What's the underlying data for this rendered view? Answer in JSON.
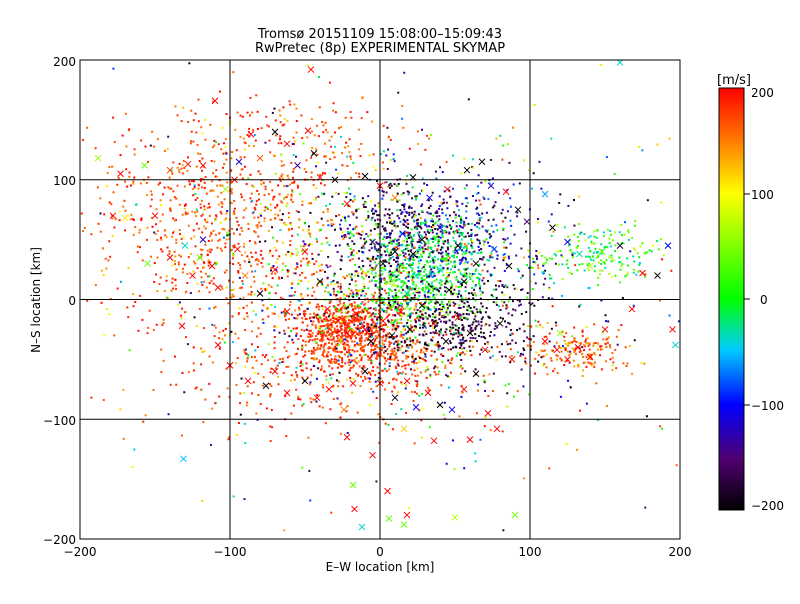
{
  "chart_data": {
    "type": "scatter",
    "title": "Tromsø 20151109 15:08:00–15:09:43",
    "subtitle": "RwPretec (8p) EXPERIMENTAL SKYMAP",
    "xlabel": "E–W location [km]",
    "ylabel": "N–S location [km]",
    "xlim": [
      -200,
      200
    ],
    "ylim": [
      -200,
      200
    ],
    "xticks": [
      -200,
      -100,
      0,
      100,
      200
    ],
    "yticks": [
      -200,
      -100,
      0,
      100,
      200
    ],
    "xtick_labels": [
      "−200",
      "−100",
      "0",
      "100",
      "200"
    ],
    "ytick_labels": [
      "−200",
      "−100",
      "0",
      "100",
      "200"
    ],
    "grid": true,
    "markers": [
      "x",
      "dot"
    ],
    "colorbar": {
      "label": "[m/s]",
      "range": [
        -200,
        200
      ],
      "ticks": [
        200,
        100,
        0,
        -100,
        -200
      ],
      "tick_labels": [
        "200",
        "100",
        "0",
        "−100",
        "−200"
      ],
      "colors": [
        "#000000",
        "#500070",
        "#0000ff",
        "#00ccff",
        "#00ff00",
        "#ffff00",
        "#ff8000",
        "#ff0000"
      ]
    },
    "points": [
      {
        "x": -140,
        "y": 108,
        "v": 180,
        "m": "x"
      },
      {
        "x": -128,
        "y": 113,
        "v": 195,
        "m": "x"
      },
      {
        "x": -118,
        "y": 112,
        "v": 190,
        "m": "x"
      },
      {
        "x": -103,
        "y": 92,
        "v": 60,
        "m": "x"
      },
      {
        "x": -97,
        "y": 100,
        "v": 200,
        "m": "x"
      },
      {
        "x": -94,
        "y": 115,
        "v": -120,
        "m": "x"
      },
      {
        "x": -86,
        "y": 138,
        "v": 200,
        "m": "x"
      },
      {
        "x": -80,
        "y": 118,
        "v": 170,
        "m": "x"
      },
      {
        "x": -70,
        "y": 140,
        "v": -200,
        "m": "x"
      },
      {
        "x": -62,
        "y": 130,
        "v": 200,
        "m": "x"
      },
      {
        "x": -55,
        "y": 112,
        "v": -140,
        "m": "x"
      },
      {
        "x": -48,
        "y": 141,
        "v": 200,
        "m": "x"
      },
      {
        "x": -44,
        "y": 122,
        "v": -200,
        "m": "x"
      },
      {
        "x": -40,
        "y": 102,
        "v": 200,
        "m": "x"
      },
      {
        "x": -46,
        "y": 192,
        "v": 200,
        "m": "x"
      },
      {
        "x": -110,
        "y": 166,
        "v": 200,
        "m": "x"
      },
      {
        "x": -30,
        "y": 100,
        "v": -190,
        "m": "x"
      },
      {
        "x": -22,
        "y": 80,
        "v": 200,
        "m": "x"
      },
      {
        "x": -10,
        "y": 103,
        "v": -200,
        "m": "x"
      },
      {
        "x": 0,
        "y": 95,
        "v": 200,
        "m": "x"
      },
      {
        "x": 10,
        "y": 85,
        "v": 150,
        "m": "x"
      },
      {
        "x": 22,
        "y": 102,
        "v": -200,
        "m": "x"
      },
      {
        "x": 33,
        "y": 85,
        "v": -110,
        "m": "x"
      },
      {
        "x": 45,
        "y": 92,
        "v": 200,
        "m": "x"
      },
      {
        "x": 58,
        "y": 108,
        "v": -200,
        "m": "x"
      },
      {
        "x": 68,
        "y": 115,
        "v": -200,
        "m": "x"
      },
      {
        "x": 74,
        "y": 95,
        "v": -120,
        "m": "x"
      },
      {
        "x": 84,
        "y": 90,
        "v": 200,
        "m": "x"
      },
      {
        "x": 92,
        "y": 75,
        "v": -200,
        "m": "x"
      },
      {
        "x": 98,
        "y": 65,
        "v": -150,
        "m": "x"
      },
      {
        "x": 110,
        "y": 88,
        "v": -60,
        "m": "x"
      },
      {
        "x": 115,
        "y": 60,
        "v": -200,
        "m": "x"
      },
      {
        "x": 125,
        "y": 48,
        "v": -100,
        "m": "x"
      },
      {
        "x": 133,
        "y": 38,
        "v": -30,
        "m": "x"
      },
      {
        "x": 140,
        "y": 28,
        "v": 70,
        "m": "x"
      },
      {
        "x": 148,
        "y": 40,
        "v": 30,
        "m": "x"
      },
      {
        "x": 160,
        "y": 45,
        "v": -180,
        "m": "x"
      },
      {
        "x": 175,
        "y": 22,
        "v": 200,
        "m": "x"
      },
      {
        "x": 192,
        "y": 45,
        "v": -100,
        "m": "x"
      },
      {
        "x": 185,
        "y": 20,
        "v": -200,
        "m": "x"
      },
      {
        "x": 160,
        "y": 198,
        "v": -40,
        "m": "x"
      },
      {
        "x": -188,
        "y": 118,
        "v": 60,
        "m": "x"
      },
      {
        "x": -178,
        "y": 70,
        "v": 200,
        "m": "x"
      },
      {
        "x": -173,
        "y": 105,
        "v": 200,
        "m": "x"
      },
      {
        "x": -170,
        "y": 68,
        "v": 110,
        "m": "x"
      },
      {
        "x": -157,
        "y": 112,
        "v": 40,
        "m": "x"
      },
      {
        "x": -155,
        "y": 30,
        "v": 40,
        "m": "x"
      },
      {
        "x": -150,
        "y": 70,
        "v": 200,
        "m": "x"
      },
      {
        "x": -140,
        "y": 35,
        "v": 200,
        "m": "x"
      },
      {
        "x": -130,
        "y": 45,
        "v": -40,
        "m": "x"
      },
      {
        "x": -125,
        "y": 20,
        "v": 200,
        "m": "x"
      },
      {
        "x": -118,
        "y": 50,
        "v": -120,
        "m": "x"
      },
      {
        "x": -112,
        "y": 28,
        "v": 200,
        "m": "x"
      },
      {
        "x": -108,
        "y": 10,
        "v": 200,
        "m": "x"
      },
      {
        "x": -95,
        "y": 42,
        "v": 200,
        "m": "x"
      },
      {
        "x": -90,
        "y": 20,
        "v": 150,
        "m": "x"
      },
      {
        "x": -80,
        "y": 5,
        "v": -200,
        "m": "x"
      },
      {
        "x": -70,
        "y": 25,
        "v": 200,
        "m": "x"
      },
      {
        "x": -62,
        "y": -10,
        "v": 200,
        "m": "x"
      },
      {
        "x": -50,
        "y": 40,
        "v": 200,
        "m": "x"
      },
      {
        "x": -40,
        "y": 15,
        "v": -200,
        "m": "x"
      },
      {
        "x": -35,
        "y": -8,
        "v": 200,
        "m": "x"
      },
      {
        "x": -28,
        "y": -18,
        "v": 200,
        "m": "x"
      },
      {
        "x": -22,
        "y": -28,
        "v": 200,
        "m": "x"
      },
      {
        "x": -16,
        "y": -12,
        "v": 200,
        "m": "x"
      },
      {
        "x": -10,
        "y": -25,
        "v": 200,
        "m": "x"
      },
      {
        "x": -6,
        "y": -35,
        "v": -200,
        "m": "x"
      },
      {
        "x": 2,
        "y": -18,
        "v": 200,
        "m": "x"
      },
      {
        "x": 8,
        "y": -30,
        "v": -200,
        "m": "x"
      },
      {
        "x": 14,
        "y": -10,
        "v": 200,
        "m": "x"
      },
      {
        "x": 20,
        "y": -25,
        "v": -200,
        "m": "x"
      },
      {
        "x": 28,
        "y": -5,
        "v": -200,
        "m": "x"
      },
      {
        "x": 36,
        "y": -20,
        "v": 200,
        "m": "x"
      },
      {
        "x": 44,
        "y": -35,
        "v": -200,
        "m": "x"
      },
      {
        "x": 52,
        "y": -15,
        "v": 200,
        "m": "x"
      },
      {
        "x": 60,
        "y": -28,
        "v": -200,
        "m": "x"
      },
      {
        "x": 70,
        "y": -42,
        "v": 200,
        "m": "x"
      },
      {
        "x": 80,
        "y": -20,
        "v": -200,
        "m": "x"
      },
      {
        "x": 88,
        "y": -50,
        "v": 200,
        "m": "x"
      },
      {
        "x": -132,
        "y": -22,
        "v": 200,
        "m": "x"
      },
      {
        "x": -108,
        "y": -38,
        "v": 200,
        "m": "x"
      },
      {
        "x": -100,
        "y": -55,
        "v": 200,
        "m": "x"
      },
      {
        "x": -88,
        "y": -68,
        "v": 200,
        "m": "x"
      },
      {
        "x": -76,
        "y": -72,
        "v": -200,
        "m": "x"
      },
      {
        "x": -70,
        "y": -60,
        "v": 200,
        "m": "x"
      },
      {
        "x": -62,
        "y": -78,
        "v": 200,
        "m": "x"
      },
      {
        "x": -50,
        "y": -68,
        "v": -200,
        "m": "x"
      },
      {
        "x": -42,
        "y": -82,
        "v": 200,
        "m": "x"
      },
      {
        "x": -34,
        "y": -75,
        "v": 200,
        "m": "x"
      },
      {
        "x": -24,
        "y": -92,
        "v": 150,
        "m": "x"
      },
      {
        "x": -18,
        "y": -70,
        "v": 200,
        "m": "x"
      },
      {
        "x": -10,
        "y": -60,
        "v": -200,
        "m": "x"
      },
      {
        "x": 0,
        "y": -70,
        "v": 200,
        "m": "x"
      },
      {
        "x": 10,
        "y": -82,
        "v": -200,
        "m": "x"
      },
      {
        "x": 18,
        "y": -68,
        "v": 200,
        "m": "x"
      },
      {
        "x": 24,
        "y": -90,
        "v": -100,
        "m": "x"
      },
      {
        "x": 32,
        "y": -78,
        "v": 200,
        "m": "x"
      },
      {
        "x": 40,
        "y": -88,
        "v": -200,
        "m": "x"
      },
      {
        "x": 48,
        "y": -92,
        "v": -100,
        "m": "x"
      },
      {
        "x": 56,
        "y": -75,
        "v": 200,
        "m": "x"
      },
      {
        "x": 64,
        "y": -62,
        "v": -200,
        "m": "x"
      },
      {
        "x": 72,
        "y": -95,
        "v": 200,
        "m": "x"
      },
      {
        "x": 78,
        "y": -108,
        "v": 200,
        "m": "x"
      },
      {
        "x": 60,
        "y": -117,
        "v": 200,
        "m": "x"
      },
      {
        "x": 36,
        "y": -118,
        "v": 200,
        "m": "x"
      },
      {
        "x": 16,
        "y": -108,
        "v": 120,
        "m": "x"
      },
      {
        "x": -22,
        "y": -115,
        "v": 200,
        "m": "x"
      },
      {
        "x": -5,
        "y": -130,
        "v": 200,
        "m": "x"
      },
      {
        "x": -18,
        "y": -155,
        "v": 40,
        "m": "x"
      },
      {
        "x": -17,
        "y": -175,
        "v": 200,
        "m": "x"
      },
      {
        "x": -12,
        "y": -190,
        "v": -40,
        "m": "x"
      },
      {
        "x": 5,
        "y": -160,
        "v": 200,
        "m": "x"
      },
      {
        "x": 6,
        "y": -183,
        "v": 40,
        "m": "x"
      },
      {
        "x": 16,
        "y": -188,
        "v": 40,
        "m": "x"
      },
      {
        "x": 18,
        "y": -180,
        "v": 200,
        "m": "x"
      },
      {
        "x": 50,
        "y": -182,
        "v": 70,
        "m": "x"
      },
      {
        "x": 90,
        "y": -180,
        "v": 40,
        "m": "x"
      },
      {
        "x": -131,
        "y": -133,
        "v": -50,
        "m": "x"
      },
      {
        "x": 110,
        "y": -35,
        "v": 200,
        "m": "x"
      },
      {
        "x": 118,
        "y": -42,
        "v": 200,
        "m": "x"
      },
      {
        "x": 125,
        "y": -50,
        "v": 200,
        "m": "x"
      },
      {
        "x": 132,
        "y": -40,
        "v": 200,
        "m": "x"
      },
      {
        "x": 140,
        "y": -48,
        "v": 200,
        "m": "x"
      },
      {
        "x": 120,
        "y": -28,
        "v": 60,
        "m": "x"
      },
      {
        "x": 150,
        "y": -25,
        "v": 200,
        "m": "x"
      },
      {
        "x": 168,
        "y": -8,
        "v": 200,
        "m": "x"
      },
      {
        "x": 195,
        "y": -25,
        "v": 200,
        "m": "x"
      },
      {
        "x": 197,
        "y": -38,
        "v": -40,
        "m": "x"
      },
      {
        "x": -120,
        "y": 35,
        "v": 40,
        "m": "x"
      },
      {
        "x": 10,
        "y": 40,
        "v": -200,
        "m": "x"
      },
      {
        "x": 15,
        "y": 55,
        "v": -100,
        "m": "x"
      },
      {
        "x": 22,
        "y": 38,
        "v": -200,
        "m": "x"
      },
      {
        "x": 28,
        "y": 50,
        "v": -200,
        "m": "x"
      },
      {
        "x": -5,
        "y": 48,
        "v": -140,
        "m": "x"
      },
      {
        "x": 2,
        "y": 30,
        "v": -200,
        "m": "x"
      },
      {
        "x": 40,
        "y": 60,
        "v": -120,
        "m": "x"
      },
      {
        "x": 52,
        "y": 45,
        "v": -200,
        "m": "x"
      },
      {
        "x": 64,
        "y": 30,
        "v": -200,
        "m": "x"
      },
      {
        "x": 76,
        "y": 42,
        "v": -80,
        "m": "x"
      },
      {
        "x": 86,
        "y": 28,
        "v": -200,
        "m": "x"
      },
      {
        "x": 24,
        "y": 20,
        "v": -40,
        "m": "x"
      },
      {
        "x": 32,
        "y": 10,
        "v": 20,
        "m": "x"
      },
      {
        "x": 18,
        "y": 5,
        "v": -30,
        "m": "x"
      },
      {
        "x": 8,
        "y": 15,
        "v": 60,
        "m": "x"
      },
      {
        "x": 40,
        "y": 25,
        "v": -40,
        "m": "x"
      },
      {
        "x": 46,
        "y": 8,
        "v": -200,
        "m": "x"
      },
      {
        "x": 56,
        "y": 15,
        "v": -200,
        "m": "x"
      }
    ],
    "clusters": [
      {
        "cx": -100,
        "cy": 55,
        "sx": 40,
        "sy": 40,
        "n": 500,
        "vmin": 140,
        "vmax": 200,
        "m": "dot"
      },
      {
        "cx": -70,
        "cy": 30,
        "sx": 55,
        "sy": 60,
        "n": 260,
        "vmin": 100,
        "vmax": 200,
        "m": "dot"
      },
      {
        "cx": -20,
        "cy": -25,
        "sx": 18,
        "sy": 15,
        "n": 650,
        "vmin": 160,
        "vmax": 200,
        "m": "dot"
      },
      {
        "cx": 5,
        "cy": -45,
        "sx": 22,
        "sy": 12,
        "n": 200,
        "vmin": 140,
        "vmax": 200,
        "m": "dot"
      },
      {
        "cx": 15,
        "cy": 55,
        "sx": 25,
        "sy": 20,
        "n": 380,
        "vmin": -200,
        "vmax": -120,
        "m": "dot"
      },
      {
        "cx": 35,
        "cy": 35,
        "sx": 20,
        "sy": 18,
        "n": 320,
        "vmin": -40,
        "vmax": 20,
        "m": "dot"
      },
      {
        "cx": 20,
        "cy": 5,
        "sx": 22,
        "sy": 14,
        "n": 280,
        "vmin": -30,
        "vmax": 50,
        "m": "dot"
      },
      {
        "cx": 45,
        "cy": -15,
        "sx": 30,
        "sy": 20,
        "n": 450,
        "vmin": -200,
        "vmax": -150,
        "m": "dot"
      },
      {
        "cx": 55,
        "cy": 55,
        "sx": 30,
        "sy": 25,
        "n": 220,
        "vmin": -200,
        "vmax": -60,
        "m": "dot"
      },
      {
        "cx": -10,
        "cy": 60,
        "sx": 50,
        "sy": 45,
        "n": 320,
        "vmin": -200,
        "vmax": 200,
        "m": "dot"
      },
      {
        "cx": 0,
        "cy": -10,
        "sx": 55,
        "sy": 40,
        "n": 380,
        "vmin": -200,
        "vmax": 200,
        "m": "dot"
      },
      {
        "cx": -40,
        "cy": -60,
        "sx": 55,
        "sy": 25,
        "n": 240,
        "vmin": 150,
        "vmax": 200,
        "m": "dot"
      },
      {
        "cx": 145,
        "cy": 38,
        "sx": 20,
        "sy": 12,
        "n": 170,
        "vmin": -50,
        "vmax": 80,
        "m": "dot"
      },
      {
        "cx": 130,
        "cy": -42,
        "sx": 16,
        "sy": 10,
        "n": 170,
        "vmin": 120,
        "vmax": 200,
        "m": "dot"
      },
      {
        "cx": -50,
        "cy": 135,
        "sx": 40,
        "sy": 20,
        "n": 130,
        "vmin": 140,
        "vmax": 200,
        "m": "dot"
      },
      {
        "cx": -140,
        "cy": 90,
        "sx": 40,
        "sy": 30,
        "n": 110,
        "vmin": 150,
        "vmax": 200,
        "m": "dot"
      },
      {
        "cx": 120,
        "cy": 10,
        "sx": 60,
        "sy": 60,
        "n": 110,
        "vmin": -200,
        "vmax": 200,
        "m": "dot"
      },
      {
        "cx": 0,
        "cy": 0,
        "sx": 130,
        "sy": 110,
        "n": 220,
        "vmin": -200,
        "vmax": 200,
        "m": "dot"
      }
    ]
  }
}
